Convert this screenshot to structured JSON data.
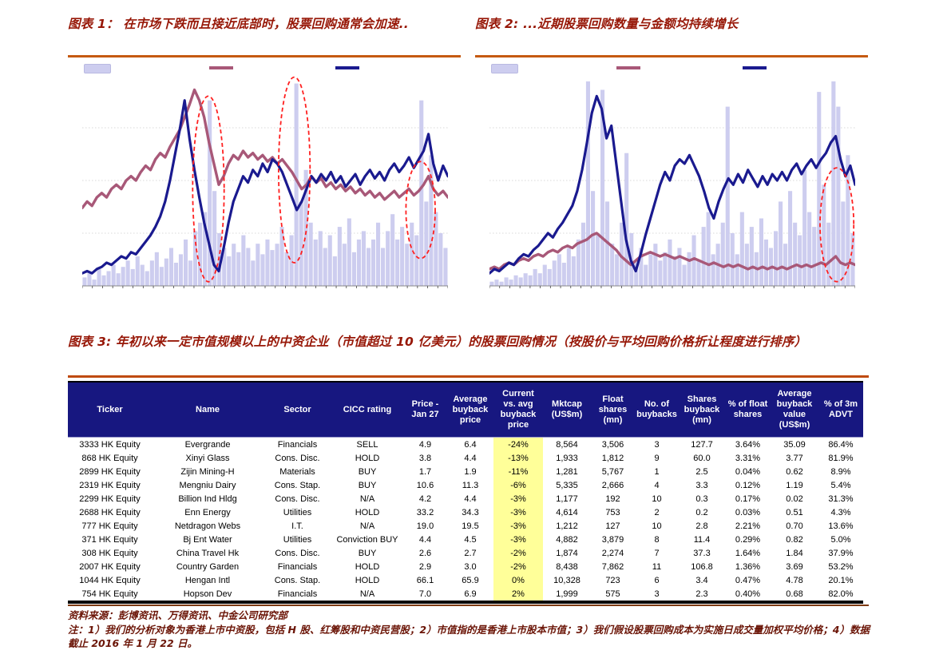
{
  "figure1": {
    "label": "图表 1：",
    "title": "图表 1：  在市场下跌而且接近底部时，股票回购通常会加速.."
  },
  "figure2": {
    "title": "图表 2:  ...近期股票回购数量与金额均持续增长"
  },
  "figure3": {
    "title": "图表 3: 年初以来一定市值规模以上的中资企业（市值超过 10 亿美元）的股票回购情况（按股价与平均回购价格折让程度进行排序）"
  },
  "colors": {
    "title_red": "#971707",
    "rule_orange": "#C55A11",
    "footer_rule": "#7E3A12",
    "table_header_bg": "#171780",
    "highlight_yellow": "#FFFF99",
    "bar_lavender": "#CDCDEF",
    "line_pink": "#A85878",
    "line_blue": "#1A1A8F",
    "ellipse_red": "#FF2020",
    "footer_red": "#6B1507"
  },
  "chart_data": [
    {
      "type": "bar",
      "subtype": "bar+line time-series combo",
      "title": "图表 1：  在市场下跌而且接近底部时，股票回购通常会加速..",
      "xlabel": "time (tick labels not visible in image)",
      "ylabel": "normalized 0-100 (axis labels not visible in image)",
      "ylim": [
        0,
        100
      ],
      "grid": "faint dotted horizontal gridlines",
      "legend_position": "top (swatches only, no visible text)",
      "legend": [
        "lavender-bars-buyback-volume",
        "pink-line-market-index",
        "navy-line-market-index"
      ],
      "bars": [
        4,
        6,
        3,
        8,
        5,
        7,
        10,
        6,
        9,
        12,
        8,
        14,
        10,
        7,
        12,
        16,
        9,
        13,
        18,
        11,
        15,
        22,
        12,
        26,
        30,
        35,
        88,
        45,
        25,
        18,
        14,
        20,
        16,
        24,
        18,
        12,
        20,
        15,
        22,
        17,
        20,
        28,
        16,
        24,
        96,
        40,
        55,
        30,
        22,
        26,
        18,
        24,
        14,
        28,
        20,
        32,
        16,
        22,
        26,
        18,
        22,
        30,
        18,
        26,
        34,
        22,
        28,
        20,
        30,
        24,
        88,
        40,
        62,
        35,
        25,
        18
      ],
      "pink_line": [
        37,
        40,
        38,
        42,
        44,
        42,
        46,
        48,
        46,
        50,
        52,
        50,
        54,
        57,
        55,
        60,
        63,
        61,
        66,
        70,
        74,
        80,
        86,
        93,
        88,
        80,
        68,
        58,
        48,
        52,
        58,
        62,
        60,
        64,
        61,
        63,
        60,
        62,
        59,
        61,
        58,
        60,
        57,
        54,
        50,
        46,
        48,
        52,
        49,
        51,
        47,
        49,
        46,
        48,
        45,
        47,
        44,
        46,
        43,
        45,
        42,
        44,
        41,
        43,
        45,
        42,
        44,
        46,
        43,
        45,
        48,
        52,
        46,
        43,
        45,
        42
      ],
      "blue_line": [
        6,
        7,
        6,
        8,
        9,
        11,
        10,
        12,
        14,
        13,
        16,
        15,
        18,
        21,
        24,
        28,
        33,
        40,
        50,
        62,
        74,
        88,
        70,
        55,
        42,
        30,
        20,
        10,
        7,
        18,
        30,
        40,
        46,
        52,
        49,
        55,
        52,
        58,
        54,
        60,
        58,
        54,
        48,
        42,
        36,
        40,
        46,
        52,
        49,
        53,
        50,
        54,
        49,
        52,
        47,
        50,
        53,
        48,
        52,
        55,
        51,
        54,
        50,
        55,
        58,
        54,
        57,
        61,
        56,
        60,
        64,
        72,
        58,
        50,
        57,
        52
      ],
      "ellipse_annotations": [
        {
          "cx_pct": 34.5,
          "cy_pct": 46,
          "rx_pct": 4.3,
          "ry_pct": 44
        },
        {
          "cx_pct": 58,
          "cy_pct": 55,
          "rx_pct": 4.3,
          "ry_pct": 44
        },
        {
          "cx_pct": 92.5,
          "cy_pct": 36,
          "rx_pct": 4,
          "ry_pct": 23
        }
      ]
    },
    {
      "type": "bar",
      "subtype": "bar+line time-series combo",
      "title": "图表 2:  ...近期股票回购数量与金额均持续增长",
      "xlabel": "time (tick labels not visible in image)",
      "ylabel": "normalized 0-100 (axis labels not visible in image)",
      "ylim": [
        0,
        100
      ],
      "grid": "faint dotted horizontal gridlines",
      "legend_position": "top (swatches only, no visible text)",
      "legend": [
        "lavender-bars-buyback-amount",
        "pink-line-buyback-value",
        "navy-line-buyback-count"
      ],
      "bars": [
        2,
        3,
        2,
        4,
        3,
        5,
        4,
        6,
        5,
        8,
        6,
        10,
        8,
        12,
        15,
        11,
        18,
        14,
        22,
        30,
        97,
        45,
        25,
        93,
        40,
        20,
        15,
        30,
        63,
        25,
        12,
        18,
        10,
        15,
        20,
        12,
        16,
        22,
        14,
        18,
        10,
        16,
        24,
        12,
        28,
        35,
        15,
        20,
        30,
        85,
        25,
        15,
        35,
        20,
        28,
        16,
        32,
        22,
        18,
        26,
        40,
        20,
        45,
        30,
        24,
        55,
        35,
        28,
        92,
        48,
        30,
        97,
        85,
        40,
        62,
        25
      ],
      "pink_line": [
        8,
        9,
        8,
        10,
        11,
        10,
        12,
        13,
        12,
        14,
        15,
        14,
        16,
        17,
        16,
        18,
        19,
        18,
        20,
        21,
        22,
        24,
        25,
        23,
        21,
        19,
        17,
        14,
        12,
        10,
        12,
        14,
        15,
        16,
        15,
        14,
        15,
        14,
        13,
        14,
        13,
        12,
        13,
        12,
        11,
        10,
        11,
        10,
        9,
        10,
        9,
        10,
        9,
        8,
        9,
        8,
        9,
        8,
        9,
        8,
        9,
        8,
        9,
        10,
        9,
        10,
        9,
        10,
        11,
        10,
        12,
        14,
        11,
        10,
        11,
        10
      ],
      "blue_line": [
        6,
        8,
        7,
        9,
        11,
        10,
        13,
        15,
        14,
        17,
        19,
        22,
        25,
        23,
        27,
        30,
        34,
        38,
        45,
        55,
        68,
        82,
        90,
        84,
        70,
        76,
        58,
        40,
        22,
        12,
        7,
        15,
        24,
        32,
        40,
        48,
        54,
        50,
        57,
        60,
        58,
        62,
        57,
        52,
        45,
        37,
        32,
        40,
        46,
        51,
        48,
        53,
        49,
        55,
        51,
        47,
        52,
        48,
        53,
        50,
        54,
        50,
        55,
        58,
        53,
        57,
        60,
        56,
        60,
        63,
        68,
        71,
        60,
        52,
        57,
        48
      ],
      "ellipse_annotations": [
        {
          "cx_pct": 95,
          "cy_pct": 29,
          "rx_pct": 4.6,
          "ry_pct": 27
        }
      ]
    }
  ],
  "table": {
    "columns": [
      "Ticker",
      "Name",
      "Sector",
      "CICC rating",
      "Price - Jan 27",
      "Average buyback price",
      "Current vs. avg buyback price",
      "Mktcap (US$m)",
      "Float shares (mn)",
      "No. of buybacks",
      "Shares buyback (mn)",
      "% of float shares",
      "Average buyback value (US$m)",
      "% of 3m ADVT"
    ],
    "highlight_column_index": 6,
    "rows": [
      [
        "3333 HK Equity",
        "Evergrande",
        "Financials",
        "SELL",
        "4.9",
        "6.4",
        "-24%",
        "8,564",
        "3,506",
        "3",
        "127.7",
        "3.64%",
        "35.09",
        "86.4%"
      ],
      [
        "868 HK Equity",
        "Xinyi Glass",
        "Cons. Disc.",
        "HOLD",
        "3.8",
        "4.4",
        "-13%",
        "1,933",
        "1,812",
        "9",
        "60.0",
        "3.31%",
        "3.77",
        "81.9%"
      ],
      [
        "2899 HK Equity",
        "Zijin Mining-H",
        "Materials",
        "BUY",
        "1.7",
        "1.9",
        "-11%",
        "1,281",
        "5,767",
        "1",
        "2.5",
        "0.04%",
        "0.62",
        "8.9%"
      ],
      [
        "2319 HK Equity",
        "Mengniu Dairy",
        "Cons. Stap.",
        "BUY",
        "10.6",
        "11.3",
        "-6%",
        "5,335",
        "2,666",
        "4",
        "3.3",
        "0.12%",
        "1.19",
        "5.4%"
      ],
      [
        "2299 HK Equity",
        "Billion Ind Hldg",
        "Cons. Disc.",
        "N/A",
        "4.2",
        "4.4",
        "-3%",
        "1,177",
        "192",
        "10",
        "0.3",
        "0.17%",
        "0.02",
        "31.3%"
      ],
      [
        "2688 HK Equity",
        "Enn Energy",
        "Utilities",
        "HOLD",
        "33.2",
        "34.3",
        "-3%",
        "4,614",
        "753",
        "2",
        "0.2",
        "0.03%",
        "0.51",
        "4.3%"
      ],
      [
        "777 HK Equity",
        "Netdragon Webs",
        "I.T.",
        "N/A",
        "19.0",
        "19.5",
        "-3%",
        "1,212",
        "127",
        "10",
        "2.8",
        "2.21%",
        "0.70",
        "13.6%"
      ],
      [
        "371 HK Equity",
        "Bj Ent Water",
        "Utilities",
        "Conviction BUY",
        "4.4",
        "4.5",
        "-3%",
        "4,882",
        "3,879",
        "8",
        "11.4",
        "0.29%",
        "0.82",
        "5.0%"
      ],
      [
        "308 HK Equity",
        "China Travel Hk",
        "Cons. Disc.",
        "BUY",
        "2.6",
        "2.7",
        "-2%",
        "1,874",
        "2,274",
        "7",
        "37.3",
        "1.64%",
        "1.84",
        "37.9%"
      ],
      [
        "2007 HK Equity",
        "Country Garden",
        "Financials",
        "HOLD",
        "2.9",
        "3.0",
        "-2%",
        "8,438",
        "7,862",
        "11",
        "106.8",
        "1.36%",
        "3.69",
        "53.2%"
      ],
      [
        "1044 HK Equity",
        "Hengan Intl",
        "Cons. Stap.",
        "HOLD",
        "66.1",
        "65.9",
        "0%",
        "10,328",
        "723",
        "6",
        "3.4",
        "0.47%",
        "4.78",
        "20.1%"
      ],
      [
        "754 HK Equity",
        "Hopson Dev",
        "Financials",
        "N/A",
        "7.0",
        "6.9",
        "2%",
        "1,999",
        "575",
        "3",
        "2.3",
        "0.40%",
        "0.68",
        "82.0%"
      ]
    ]
  },
  "footer": {
    "source": "资料来源：彭博资讯、万得资讯、中金公司研究部",
    "note": "注：1）我们的分析对象为香港上市中资股，包括 H 股、红筹股和中资民营股；2）市值指的是香港上市股本市值；3）我们假设股票回购成本为实施日成交量加权平均价格；4）数据截止 2016 年 1 月 22 日。"
  }
}
